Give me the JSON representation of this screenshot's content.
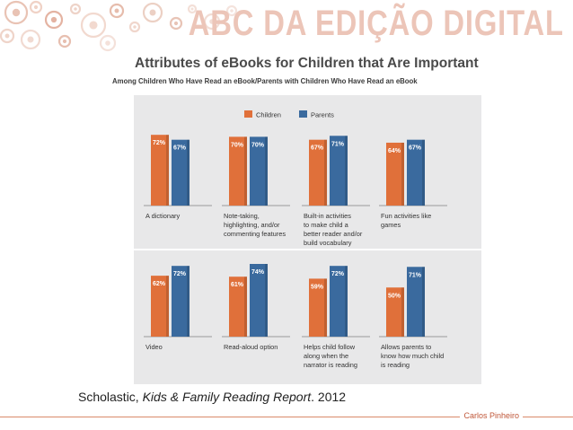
{
  "header": {
    "brand": "ABC DA EDIÇÃO DIGITAL"
  },
  "chart_data": {
    "type": "bar",
    "title": "Attributes of eBooks for Children that Are Important",
    "subtitle": "Among Children Who Have Read an eBook/Parents with Children Who Have Read an eBook",
    "legend": [
      "Children",
      "Parents"
    ],
    "legend_position": "top-right",
    "colors": {
      "Children": "#e0703a",
      "Parents": "#3a6a9e"
    },
    "unit": "%",
    "ylim": [
      0,
      80
    ],
    "panels": [
      {
        "category": "A dictionary",
        "values": [
          72,
          67
        ]
      },
      {
        "category": "Note-taking, highlighting, and/or commenting features",
        "values": [
          70,
          70
        ]
      },
      {
        "category": "Built-in activities to make child a better reader and/or build vocabulary",
        "values": [
          67,
          71
        ]
      },
      {
        "category": "Fun activities like games",
        "values": [
          64,
          67
        ]
      },
      {
        "category": "Video",
        "values": [
          62,
          72
        ]
      },
      {
        "category": "Read-aloud option",
        "values": [
          61,
          74
        ]
      },
      {
        "category": "Helps child follow along when the narrator is reading",
        "values": [
          59,
          72
        ]
      },
      {
        "category": "Allows parents to know how much child is reading",
        "values": [
          50,
          71
        ]
      }
    ]
  },
  "source": {
    "publisher": "Scholastic, ",
    "report": "Kids & Family Reading Report",
    "year": ". 2012"
  },
  "footer": {
    "author": "Carlos Pinheiro"
  }
}
